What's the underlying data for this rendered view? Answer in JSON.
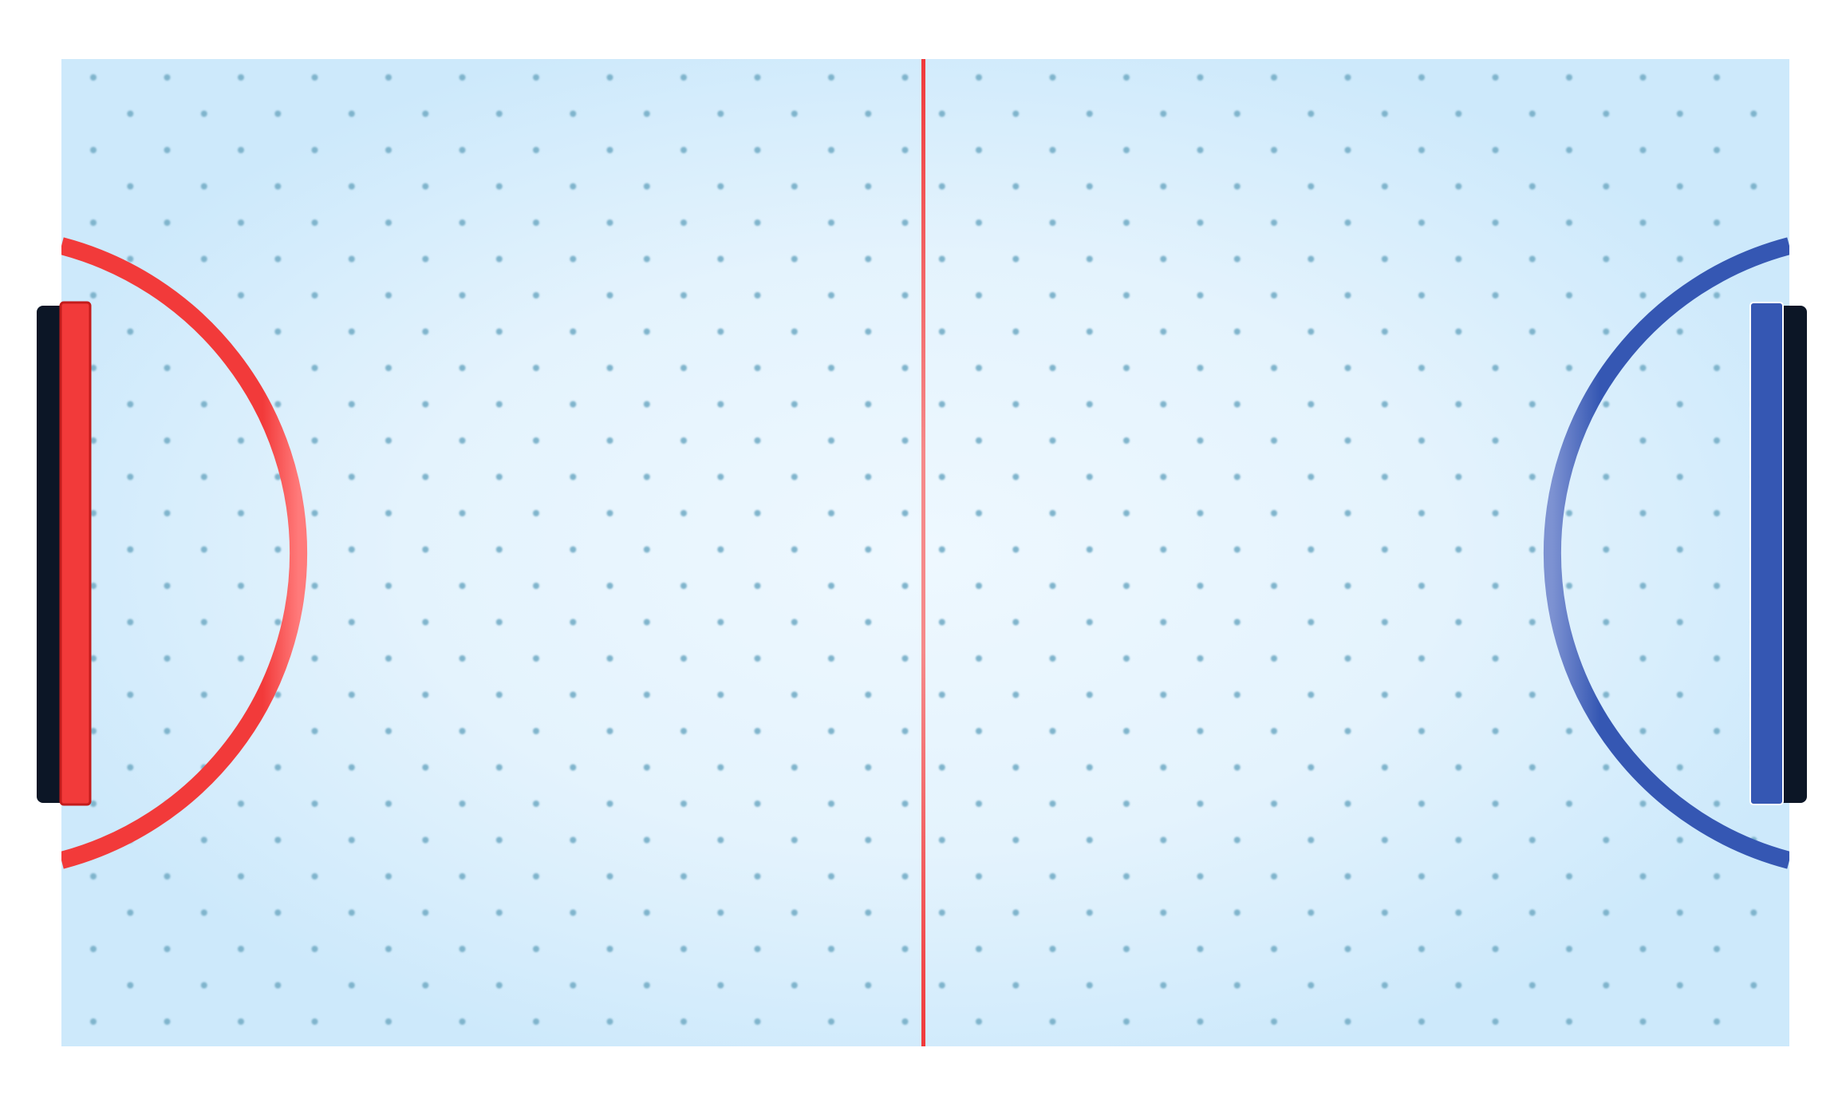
{
  "game": {
    "type": "air-hockey-table",
    "colors": {
      "page_background": "#ffffff",
      "surface_center": "#eef8ff",
      "surface_edge": "#cde9fb",
      "air_hole": "#7fb4cc",
      "center_line": "#f03a3a",
      "left_team": "#f23a3a",
      "left_team_dark": "#c41c1c",
      "right_team": "#3557b3",
      "right_team_dark": "#233f8f",
      "goal_back": "#0c1626"
    },
    "icons": {
      "table": "air-hockey-table-icon",
      "left_goal": "red-goal-icon",
      "right_goal": "blue-goal-icon"
    }
  }
}
